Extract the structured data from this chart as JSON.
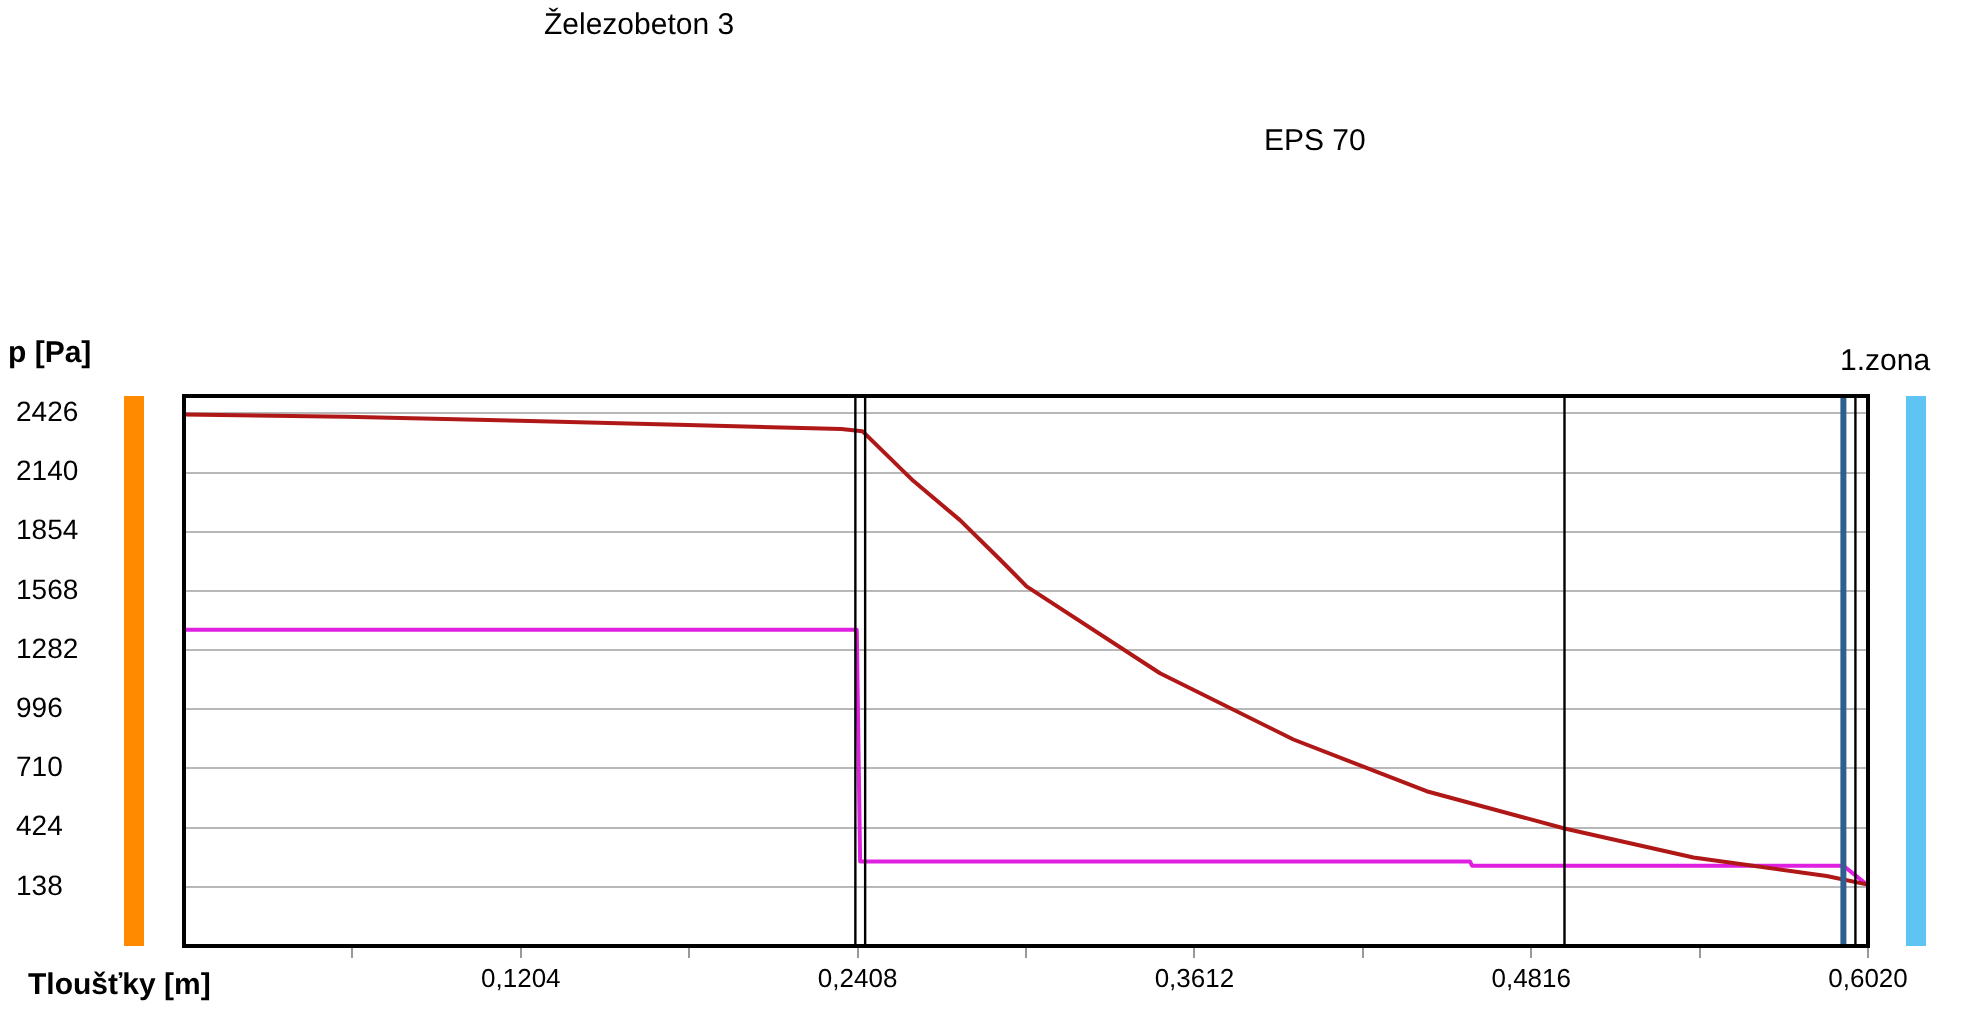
{
  "chart_data": {
    "type": "line",
    "xlabel": "Tloušťky [m]",
    "ylabel": "p [Pa]",
    "annotations": [
      "Železobeton 3",
      "EPS 70",
      "1.zona"
    ],
    "xlim": [
      0,
      0.602
    ],
    "ylim": [
      -148,
      2510
    ],
    "xticks": [
      {
        "value": 0.0602,
        "label": null
      },
      {
        "value": 0.1204,
        "label": "0,1204"
      },
      {
        "value": 0.1806,
        "label": null
      },
      {
        "value": 0.2408,
        "label": "0,2408"
      },
      {
        "value": 0.301,
        "label": null
      },
      {
        "value": 0.3612,
        "label": "0,3612"
      },
      {
        "value": 0.4214,
        "label": null
      },
      {
        "value": 0.4816,
        "label": "0,4816"
      },
      {
        "value": 0.5418,
        "label": null
      },
      {
        "value": 0.602,
        "label": "0,6020"
      }
    ],
    "yticks": [
      138,
      424,
      710,
      996,
      1282,
      1568,
      1854,
      2140,
      2426
    ],
    "grid": "y",
    "marker": "none",
    "line_style": "solid",
    "ref_lines": [
      {
        "axis": "x",
        "value": 0.24,
        "color": "#000000"
      },
      {
        "axis": "x",
        "value": 0.2435,
        "color": "#000000"
      },
      {
        "axis": "x",
        "value": 0.4935,
        "color": "#000000"
      },
      {
        "axis": "x",
        "value": 0.5932,
        "color": "#2f5f8f"
      },
      {
        "axis": "x",
        "value": 0.5975,
        "color": "#000000"
      }
    ],
    "series": [
      {
        "color": "#b01818",
        "x": [
          0,
          0.058,
          0.12,
          0.18,
          0.235,
          0.2425,
          0.2607,
          0.2774,
          0.2917,
          0.3012,
          0.3489,
          0.3966,
          0.4442,
          0.4935,
          0.5396,
          0.5872,
          0.6015
        ],
        "values": [
          2420,
          2410,
          2390,
          2370,
          2350,
          2340,
          2100,
          1910,
          1720,
          1590,
          1170,
          850,
          600,
          420,
          280,
          190,
          150
        ]
      },
      {
        "color": "#e020e0",
        "x": [
          0,
          0.2405,
          0.2417,
          0.4597,
          0.4605,
          0.5932,
          0.6015
        ],
        "values": [
          1380,
          1380,
          260,
          260,
          240,
          240,
          150
        ]
      }
    ]
  }
}
